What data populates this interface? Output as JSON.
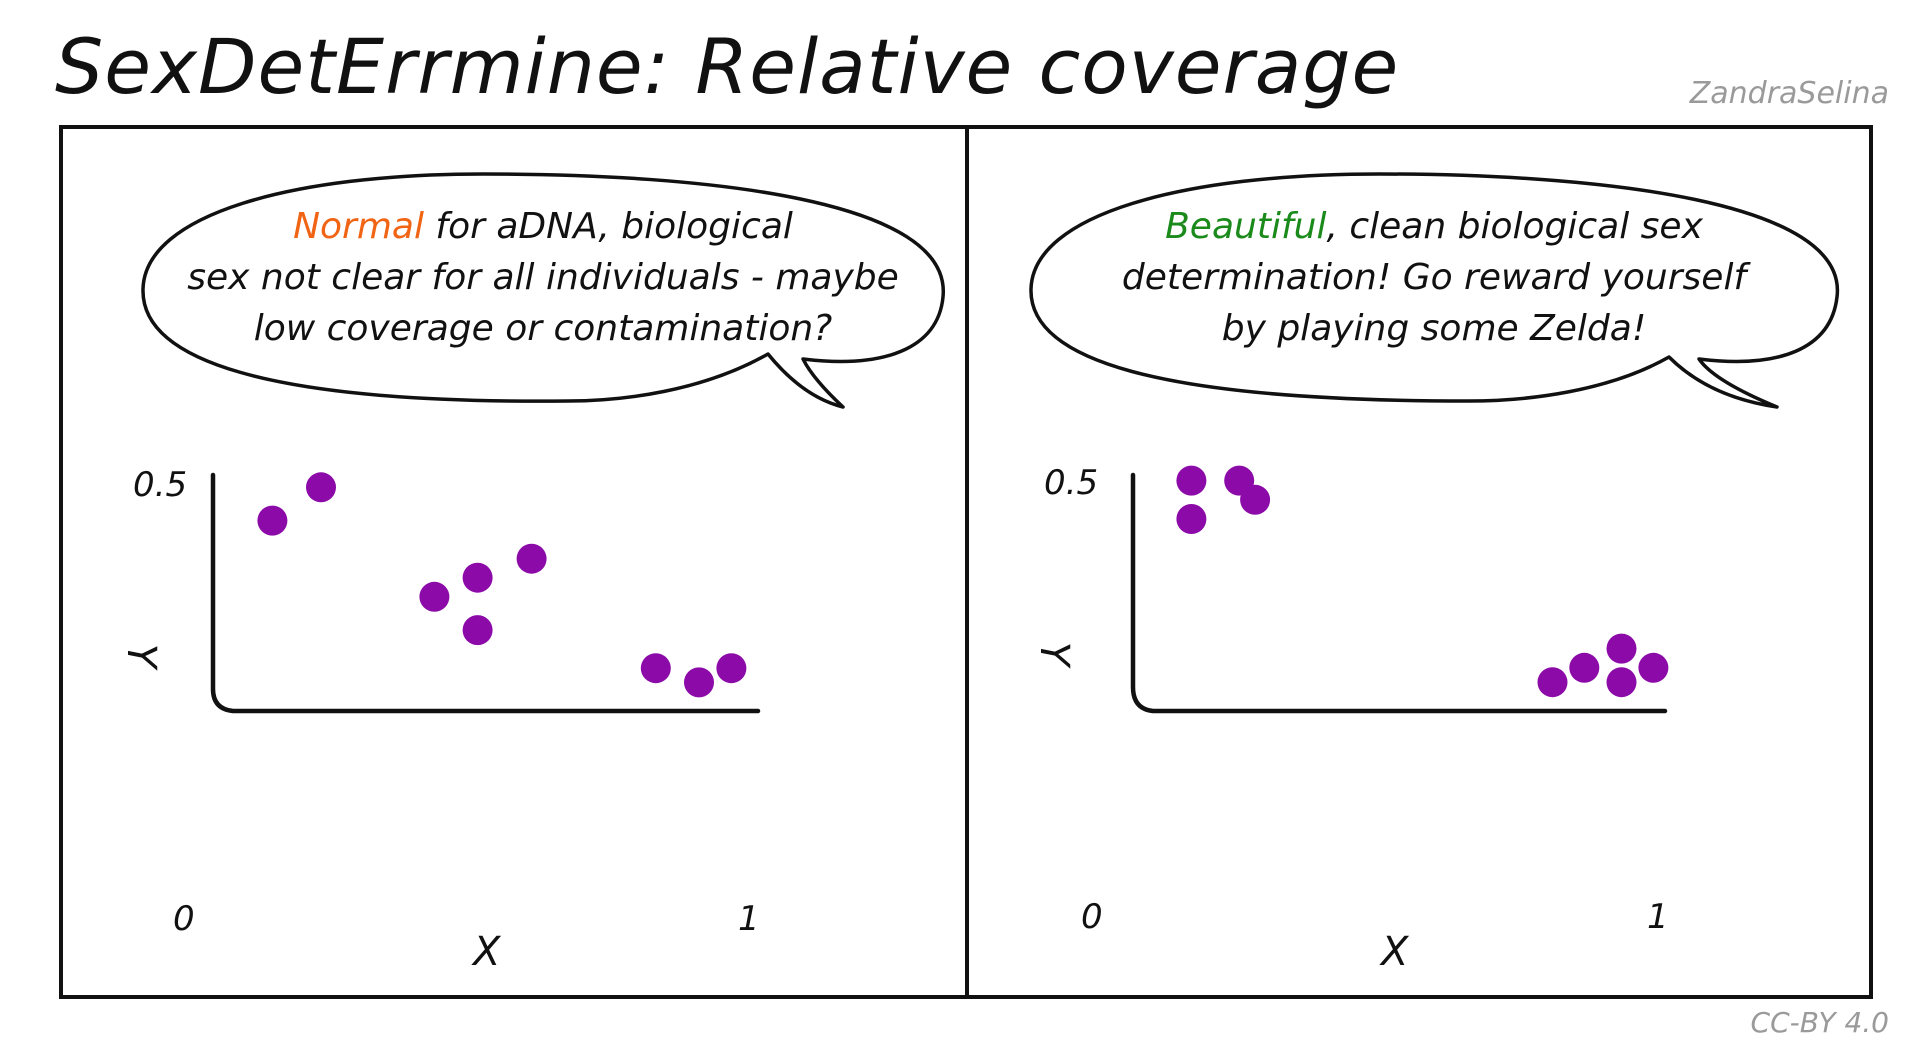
{
  "title": "SexDetErrmine: Relative coverage",
  "author": "ZandraSelina",
  "license": "CC-BY 4.0",
  "colors": {
    "normal": "#f06414",
    "beautiful": "#1a8a1a",
    "points": "#8b0aa8",
    "ink": "#111111"
  },
  "panels": [
    {
      "bubble": {
        "highlight": "Normal",
        "line1_rest": " for aDNA, biological",
        "line2": "sex not clear for all individuals - maybe",
        "line3": "low coverage or contamination?"
      },
      "axes": {
        "y_top_label": "0.5",
        "origin_label": "0",
        "x_end_label": "1",
        "xlabel": "X",
        "ylabel": "Y"
      }
    },
    {
      "bubble": {
        "highlight": "Beautiful",
        "line1_rest": ", clean biological sex",
        "line2": "determination! Go reward yourself",
        "line3": "by playing some Zelda!"
      },
      "axes": {
        "y_top_label": "0.5",
        "origin_label": "0",
        "x_end_label": "1",
        "xlabel": "X",
        "ylabel": "Y"
      }
    }
  ],
  "chart_data": [
    {
      "type": "scatter",
      "xlabel": "X",
      "ylabel": "Y",
      "xlim": [
        0,
        1
      ],
      "ylim": [
        0,
        0.5
      ],
      "x": [
        0.11,
        0.2,
        0.41,
        0.49,
        0.59,
        0.49,
        0.82,
        0.9,
        0.96
      ],
      "y": [
        0.4,
        0.47,
        0.24,
        0.28,
        0.32,
        0.17,
        0.09,
        0.06,
        0.09
      ]
    },
    {
      "type": "scatter",
      "xlabel": "X",
      "ylabel": "Y",
      "xlim": [
        0,
        1
      ],
      "ylim": [
        0,
        0.5
      ],
      "x": [
        0.11,
        0.2,
        0.23,
        0.11,
        0.79,
        0.85,
        0.92,
        0.92,
        0.98
      ],
      "y": [
        0.48,
        0.48,
        0.44,
        0.4,
        0.06,
        0.09,
        0.13,
        0.06,
        0.09
      ]
    }
  ]
}
